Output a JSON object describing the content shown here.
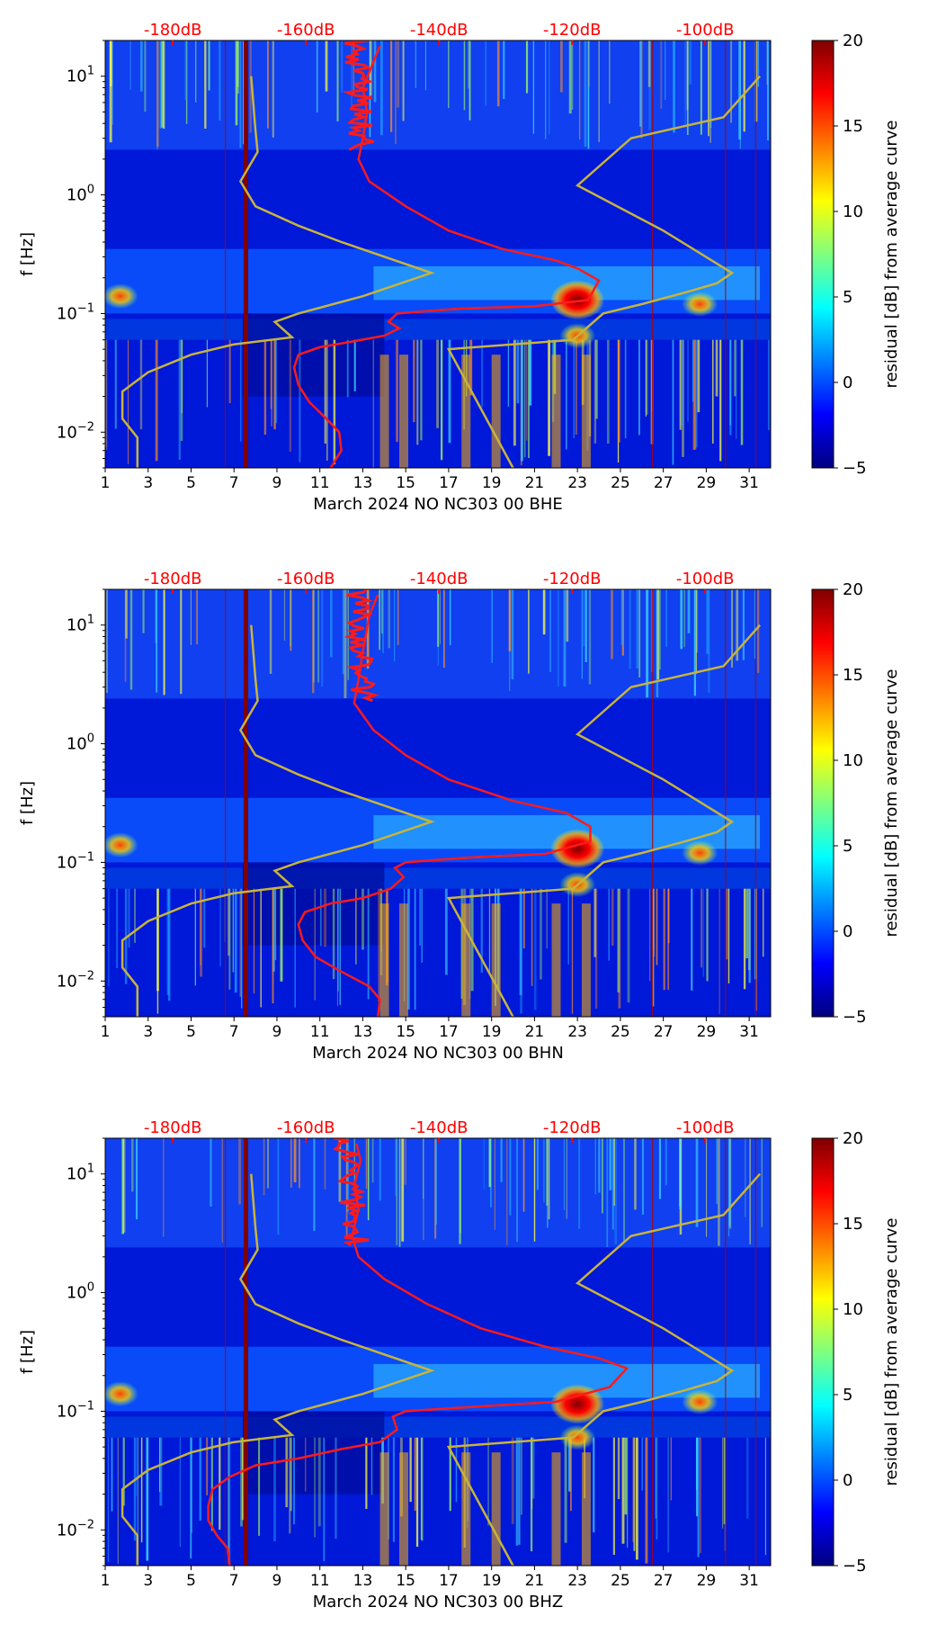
{
  "colors": {
    "noise_model_line": "#c8b43a",
    "average_curve_line": "#ff1a1a",
    "top_axis_labels": "#ff0000",
    "colormap": [
      "#00007f",
      "#0000ff",
      "#007fff",
      "#00ffff",
      "#7fff7f",
      "#ffff00",
      "#ff7f00",
      "#ff0000",
      "#7f0000"
    ]
  },
  "chart_data": [
    {
      "type": "heatmap",
      "title": "",
      "xlabel": "March 2024 NO NC303 00 BHE",
      "ylabel": "f [Hz]",
      "xlim": [
        1,
        32
      ],
      "ylim": [
        0.005,
        20
      ],
      "yscale": "log",
      "x_ticks": [
        1,
        3,
        5,
        7,
        9,
        11,
        13,
        15,
        17,
        19,
        21,
        23,
        25,
        27,
        29,
        31
      ],
      "y_ticks": [
        {
          "value": 0.01,
          "base": "10",
          "exp": "−2"
        },
        {
          "value": 0.1,
          "base": "10",
          "exp": "−1"
        },
        {
          "value": 1,
          "base": "10",
          "exp": "0"
        },
        {
          "value": 10,
          "base": "10",
          "exp": "1"
        }
      ],
      "top_axis_labels": [
        "-180dB",
        "-160dB",
        "-140dB",
        "-120dB",
        "-100dB"
      ],
      "top_axis_positions": [
        4.15,
        10.35,
        16.55,
        22.75,
        28.95
      ],
      "colorbar": {
        "label": "residual [dB] from average curve",
        "min": -5,
        "max": 20,
        "ticks": [
          -5,
          0,
          5,
          10,
          15,
          20
        ]
      },
      "noise_model_curve": [
        [
          2.5,
          0.005
        ],
        [
          2.5,
          0.009
        ],
        [
          1.8,
          0.013
        ],
        [
          1.8,
          0.022
        ],
        [
          3.0,
          0.032
        ],
        [
          5.0,
          0.045
        ],
        [
          7.0,
          0.055
        ],
        [
          9.7,
          0.063
        ],
        [
          8.9,
          0.085
        ],
        [
          10.0,
          0.1
        ],
        [
          13.0,
          0.14
        ],
        [
          16.2,
          0.22
        ],
        [
          12.0,
          0.4
        ],
        [
          10.0,
          0.55
        ],
        [
          8.0,
          0.8
        ],
        [
          7.3,
          1.3
        ],
        [
          8.1,
          2.3
        ],
        [
          8.0,
          3.5
        ],
        [
          7.8,
          10.0
        ]
      ],
      "noise_model_curve_2": [
        [
          20.0,
          0.005
        ],
        [
          17.0,
          0.05
        ],
        [
          22.8,
          0.06
        ],
        [
          24.2,
          0.1
        ],
        [
          26.0,
          0.12
        ],
        [
          28.0,
          0.15
        ],
        [
          29.5,
          0.18
        ],
        [
          30.2,
          0.22
        ],
        [
          27.0,
          0.5
        ],
        [
          23.0,
          1.2
        ],
        [
          25.5,
          3.0
        ],
        [
          29.8,
          4.5
        ],
        [
          31.5,
          10.0
        ]
      ],
      "average_curve": [
        [
          11.5,
          0.005
        ],
        [
          12.0,
          0.007
        ],
        [
          11.9,
          0.01
        ],
        [
          11.3,
          0.013
        ],
        [
          10.5,
          0.018
        ],
        [
          10.0,
          0.025
        ],
        [
          9.8,
          0.035
        ],
        [
          10.0,
          0.045
        ],
        [
          11.0,
          0.052
        ],
        [
          12.5,
          0.058
        ],
        [
          14.0,
          0.065
        ],
        [
          14.7,
          0.075
        ],
        [
          14.2,
          0.085
        ],
        [
          14.6,
          0.1
        ],
        [
          17.5,
          0.11
        ],
        [
          21.0,
          0.115
        ],
        [
          23.5,
          0.13
        ],
        [
          24.0,
          0.19
        ],
        [
          23.0,
          0.24
        ],
        [
          22.0,
          0.28
        ],
        [
          19.5,
          0.35
        ],
        [
          17.0,
          0.5
        ],
        [
          15.0,
          0.8
        ],
        [
          13.3,
          1.3
        ],
        [
          12.8,
          2.0
        ],
        [
          13.0,
          3.0
        ],
        [
          13.2,
          5.0
        ],
        [
          13.0,
          8.0
        ],
        [
          13.4,
          12.0
        ],
        [
          13.8,
          18.0
        ]
      ],
      "avg_noise_band": [
        [
          12.7,
          2.4
        ],
        [
          12.5,
          20.0
        ]
      ],
      "hot_spots": [
        {
          "x": 23.0,
          "y": 0.13
        },
        {
          "x": 23.0,
          "y": 0.065
        },
        {
          "x": 1.7,
          "y": 0.14
        },
        {
          "x": 28.7,
          "y": 0.12
        }
      ]
    },
    {
      "type": "heatmap",
      "title": "",
      "xlabel": "March 2024 NO NC303 00 BHN",
      "ylabel": "f [Hz]",
      "xlim": [
        1,
        32
      ],
      "ylim": [
        0.005,
        20
      ],
      "yscale": "log",
      "x_ticks": [
        1,
        3,
        5,
        7,
        9,
        11,
        13,
        15,
        17,
        19,
        21,
        23,
        25,
        27,
        29,
        31
      ],
      "y_ticks": [
        {
          "value": 0.01,
          "base": "10",
          "exp": "−2"
        },
        {
          "value": 0.1,
          "base": "10",
          "exp": "−1"
        },
        {
          "value": 1,
          "base": "10",
          "exp": "0"
        },
        {
          "value": 10,
          "base": "10",
          "exp": "1"
        }
      ],
      "top_axis_labels": [
        "-180dB",
        "-160dB",
        "-140dB",
        "-120dB",
        "-100dB"
      ],
      "top_axis_positions": [
        4.15,
        10.35,
        16.55,
        22.75,
        28.95
      ],
      "colorbar": {
        "label": "residual [dB] from average curve",
        "min": -5,
        "max": 20,
        "ticks": [
          -5,
          0,
          5,
          10,
          15,
          20
        ]
      },
      "noise_model_curve": [
        [
          2.5,
          0.005
        ],
        [
          2.5,
          0.009
        ],
        [
          1.8,
          0.013
        ],
        [
          1.8,
          0.022
        ],
        [
          3.0,
          0.032
        ],
        [
          5.0,
          0.045
        ],
        [
          7.0,
          0.055
        ],
        [
          9.7,
          0.063
        ],
        [
          8.9,
          0.085
        ],
        [
          10.0,
          0.1
        ],
        [
          13.0,
          0.14
        ],
        [
          16.2,
          0.22
        ],
        [
          12.0,
          0.4
        ],
        [
          10.0,
          0.55
        ],
        [
          8.0,
          0.8
        ],
        [
          7.3,
          1.3
        ],
        [
          8.1,
          2.3
        ],
        [
          8.0,
          3.5
        ],
        [
          7.8,
          10.0
        ]
      ],
      "noise_model_curve_2": [
        [
          20.0,
          0.005
        ],
        [
          17.0,
          0.05
        ],
        [
          22.8,
          0.06
        ],
        [
          24.2,
          0.1
        ],
        [
          26.0,
          0.12
        ],
        [
          28.0,
          0.15
        ],
        [
          29.5,
          0.18
        ],
        [
          30.2,
          0.22
        ],
        [
          27.0,
          0.5
        ],
        [
          23.0,
          1.2
        ],
        [
          25.5,
          3.0
        ],
        [
          29.8,
          4.5
        ],
        [
          31.5,
          10.0
        ]
      ],
      "average_curve": [
        [
          13.7,
          0.005
        ],
        [
          13.8,
          0.007
        ],
        [
          13.3,
          0.009
        ],
        [
          12.0,
          0.012
        ],
        [
          10.8,
          0.016
        ],
        [
          10.2,
          0.022
        ],
        [
          10.0,
          0.03
        ],
        [
          10.3,
          0.038
        ],
        [
          11.5,
          0.045
        ],
        [
          13.0,
          0.05
        ],
        [
          14.3,
          0.06
        ],
        [
          14.9,
          0.075
        ],
        [
          14.5,
          0.09
        ],
        [
          15.0,
          0.1
        ],
        [
          18.0,
          0.11
        ],
        [
          21.5,
          0.118
        ],
        [
          23.6,
          0.15
        ],
        [
          23.6,
          0.2
        ],
        [
          22.5,
          0.26
        ],
        [
          20.0,
          0.33
        ],
        [
          17.0,
          0.5
        ],
        [
          15.0,
          0.8
        ],
        [
          13.5,
          1.3
        ],
        [
          12.6,
          2.2
        ],
        [
          12.8,
          3.5
        ],
        [
          13.0,
          6.0
        ],
        [
          13.3,
          12.0
        ],
        [
          13.7,
          18.0
        ]
      ],
      "avg_noise_band": [
        [
          12.8,
          2.3
        ],
        [
          12.4,
          20.0
        ]
      ],
      "hot_spots": [
        {
          "x": 23.0,
          "y": 0.13
        },
        {
          "x": 23.0,
          "y": 0.065
        },
        {
          "x": 1.7,
          "y": 0.14
        },
        {
          "x": 28.7,
          "y": 0.12
        }
      ]
    },
    {
      "type": "heatmap",
      "title": "",
      "xlabel": "March 2024 NO NC303 00 BHZ",
      "ylabel": "f [Hz]",
      "xlim": [
        1,
        32
      ],
      "ylim": [
        0.005,
        20
      ],
      "yscale": "log",
      "x_ticks": [
        1,
        3,
        5,
        7,
        9,
        11,
        13,
        15,
        17,
        19,
        21,
        23,
        25,
        27,
        29,
        31
      ],
      "y_ticks": [
        {
          "value": 0.01,
          "base": "10",
          "exp": "−2"
        },
        {
          "value": 0.1,
          "base": "10",
          "exp": "−1"
        },
        {
          "value": 1,
          "base": "10",
          "exp": "0"
        },
        {
          "value": 10,
          "base": "10",
          "exp": "1"
        }
      ],
      "top_axis_labels": [
        "-180dB",
        "-160dB",
        "-140dB",
        "-120dB",
        "-100dB"
      ],
      "top_axis_positions": [
        4.15,
        10.35,
        16.55,
        22.75,
        28.95
      ],
      "colorbar": {
        "label": "residual [dB] from average curve",
        "min": -5,
        "max": 20,
        "ticks": [
          -5,
          0,
          5,
          10,
          15,
          20
        ]
      },
      "noise_model_curve": [
        [
          2.5,
          0.005
        ],
        [
          2.5,
          0.009
        ],
        [
          1.8,
          0.013
        ],
        [
          1.8,
          0.022
        ],
        [
          3.0,
          0.032
        ],
        [
          5.0,
          0.045
        ],
        [
          7.0,
          0.055
        ],
        [
          9.7,
          0.063
        ],
        [
          8.9,
          0.085
        ],
        [
          10.0,
          0.1
        ],
        [
          13.0,
          0.14
        ],
        [
          16.2,
          0.22
        ],
        [
          12.0,
          0.4
        ],
        [
          10.0,
          0.55
        ],
        [
          8.0,
          0.8
        ],
        [
          7.3,
          1.3
        ],
        [
          8.1,
          2.3
        ],
        [
          8.0,
          3.5
        ],
        [
          7.8,
          10.0
        ]
      ],
      "noise_model_curve_2": [
        [
          20.0,
          0.005
        ],
        [
          17.0,
          0.05
        ],
        [
          22.8,
          0.06
        ],
        [
          24.2,
          0.1
        ],
        [
          26.0,
          0.12
        ],
        [
          28.0,
          0.15
        ],
        [
          29.5,
          0.18
        ],
        [
          30.2,
          0.22
        ],
        [
          27.0,
          0.5
        ],
        [
          23.0,
          1.2
        ],
        [
          25.5,
          3.0
        ],
        [
          29.8,
          4.5
        ],
        [
          31.5,
          10.0
        ]
      ],
      "average_curve": [
        [
          6.8,
          0.005
        ],
        [
          6.7,
          0.007
        ],
        [
          6.2,
          0.009
        ],
        [
          5.8,
          0.012
        ],
        [
          5.8,
          0.016
        ],
        [
          6.0,
          0.022
        ],
        [
          6.8,
          0.028
        ],
        [
          8.0,
          0.035
        ],
        [
          10.0,
          0.04
        ],
        [
          12.0,
          0.048
        ],
        [
          13.8,
          0.055
        ],
        [
          14.6,
          0.07
        ],
        [
          14.4,
          0.09
        ],
        [
          15.0,
          0.1
        ],
        [
          18.5,
          0.11
        ],
        [
          22.0,
          0.12
        ],
        [
          24.5,
          0.16
        ],
        [
          25.3,
          0.23
        ],
        [
          24.0,
          0.28
        ],
        [
          21.5,
          0.35
        ],
        [
          18.5,
          0.5
        ],
        [
          16.0,
          0.8
        ],
        [
          14.0,
          1.3
        ],
        [
          12.8,
          2.0
        ],
        [
          12.5,
          3.0
        ],
        [
          12.8,
          5.0
        ],
        [
          12.6,
          8.0
        ],
        [
          12.9,
          13.0
        ],
        [
          12.7,
          18.0
        ]
      ],
      "avg_noise_band": [
        [
          12.5,
          2.5
        ],
        [
          12.0,
          20.0
        ]
      ],
      "hot_spots": [
        {
          "x": 23.0,
          "y": 0.115
        },
        {
          "x": 23.0,
          "y": 0.06
        },
        {
          "x": 1.7,
          "y": 0.14
        },
        {
          "x": 28.7,
          "y": 0.12
        }
      ]
    }
  ]
}
